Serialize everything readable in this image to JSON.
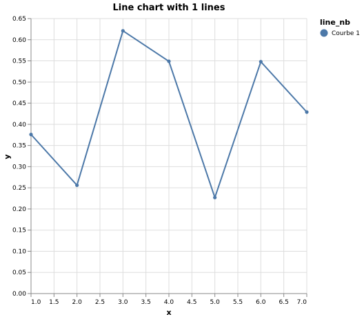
{
  "chart_data": {
    "type": "line",
    "title": "Line chart with 1 lines",
    "xlabel": "x",
    "ylabel": "y",
    "xlim": [
      1,
      7
    ],
    "ylim": [
      0,
      0.65
    ],
    "x_ticks": [
      "1.0",
      "1.5",
      "2.0",
      "2.5",
      "3.0",
      "3.5",
      "4.0",
      "4.5",
      "5.0",
      "5.5",
      "6.0",
      "6.5",
      "7.0"
    ],
    "y_ticks": [
      "0.00",
      "0.05",
      "0.10",
      "0.15",
      "0.20",
      "0.25",
      "0.30",
      "0.35",
      "0.40",
      "0.45",
      "0.50",
      "0.55",
      "0.60",
      "0.65"
    ],
    "grid": true,
    "legend": {
      "title": "line_nb",
      "placement": "top-right"
    },
    "series": [
      {
        "name": "Courbe 1",
        "color": "#4c78a8",
        "x": [
          1,
          2,
          3,
          4,
          5,
          6,
          7
        ],
        "values": [
          0.376,
          0.256,
          0.621,
          0.549,
          0.227,
          0.548,
          0.429
        ]
      }
    ]
  }
}
